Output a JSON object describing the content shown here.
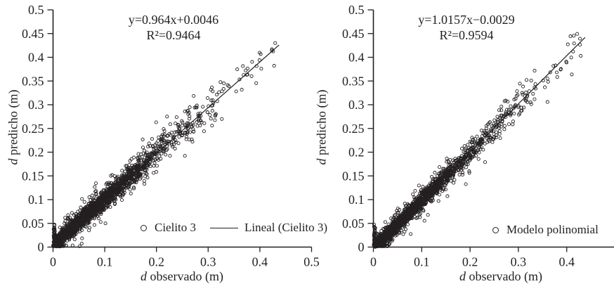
{
  "figure": {
    "background": "#ffffff",
    "ink_color": "#231f20"
  },
  "chart_data": [
    {
      "type": "scatter",
      "panel": "left",
      "equation_line1": "y=0.964x+0.0046",
      "equation_line2": "R²=0.9464",
      "legend": [
        {
          "marker": "open-circle",
          "label": "Cielito 3"
        },
        {
          "marker": "line",
          "label": "Lineal (Cielito 3)"
        }
      ],
      "xlabel_italic": "d",
      "xlabel_rest": " observado (m)",
      "ylabel_italic": "d",
      "ylabel_rest": " predicho (m)",
      "xlim": [
        0,
        0.5
      ],
      "ylim": [
        0,
        0.5
      ],
      "xtick_values": [
        0,
        0.1,
        0.2,
        0.3,
        0.4,
        0.5
      ],
      "xtick_labels": [
        "0",
        "0.1",
        "0.2",
        "0.3",
        "0.4",
        "0.5"
      ],
      "ytick_values": [
        0,
        0.05,
        0.1,
        0.15,
        0.2,
        0.25,
        0.3,
        0.35,
        0.4,
        0.45,
        0.5
      ],
      "ytick_labels": [
        "0",
        "0.05",
        "0.1",
        "0.15",
        "0.2",
        "0.25",
        "0.3",
        "0.35",
        "0.4",
        "0.45",
        "0.5"
      ],
      "fit": {
        "slope": 0.964,
        "intercept": 0.0046,
        "r2": 0.9464,
        "x_start": 0.005,
        "x_end": 0.437
      },
      "data_extent": {
        "x": [
          0,
          0.43
        ],
        "y": [
          0,
          0.46
        ]
      },
      "scatter_spec": {
        "seed": 1317,
        "n_points": 2800,
        "x_mean": 0.08,
        "x_max": 0.43,
        "noise_sd_base": 0.0045,
        "noise_sd_slope": 0.055,
        "outlier_fraction": 0.1,
        "outlier_sd_base": 0.012,
        "outlier_sd_slope": 0.09,
        "axis_hug_points": 40
      }
    },
    {
      "type": "scatter",
      "panel": "right",
      "equation_line1": "y=1.0157x−0.0029",
      "equation_line2": "R²=0.9594",
      "legend": [
        {
          "marker": "open-circle",
          "label": "Modelo polinomial"
        }
      ],
      "xlabel_italic": "d",
      "xlabel_rest": " observado (m)",
      "ylabel_italic": "d",
      "ylabel_rest": " predicho (m)",
      "xlim": [
        0,
        0.5
      ],
      "ylim": [
        0,
        0.5
      ],
      "xtick_values": [
        0,
        0.1,
        0.2,
        0.3,
        0.4
      ],
      "xtick_labels": [
        "0",
        "0.1",
        "0.2",
        "0.3",
        "0.4"
      ],
      "ytick_values": [
        0,
        0.05,
        0.1,
        0.15,
        0.2,
        0.25,
        0.3,
        0.35,
        0.4,
        0.45,
        0.5
      ],
      "ytick_labels": [
        "0",
        "0.05",
        "0.1",
        "0.15",
        "0.2",
        "0.25",
        "0.3",
        "0.35",
        "0.4",
        "0.45",
        "0.5"
      ],
      "fit": {
        "slope": 1.0157,
        "intercept": -0.0029,
        "r2": 0.9594,
        "x_start": 0.008,
        "x_end": 0.438
      },
      "data_extent": {
        "x": [
          0,
          0.43
        ],
        "y": [
          0,
          0.45
        ]
      },
      "scatter_spec": {
        "seed": 924,
        "n_points": 3000,
        "x_mean": 0.078,
        "x_max": 0.428,
        "noise_sd_base": 0.0035,
        "noise_sd_slope": 0.04,
        "outlier_fraction": 0.13,
        "outlier_sd_base": 0.01,
        "outlier_sd_slope": 0.08,
        "axis_hug_points": 40
      }
    }
  ]
}
